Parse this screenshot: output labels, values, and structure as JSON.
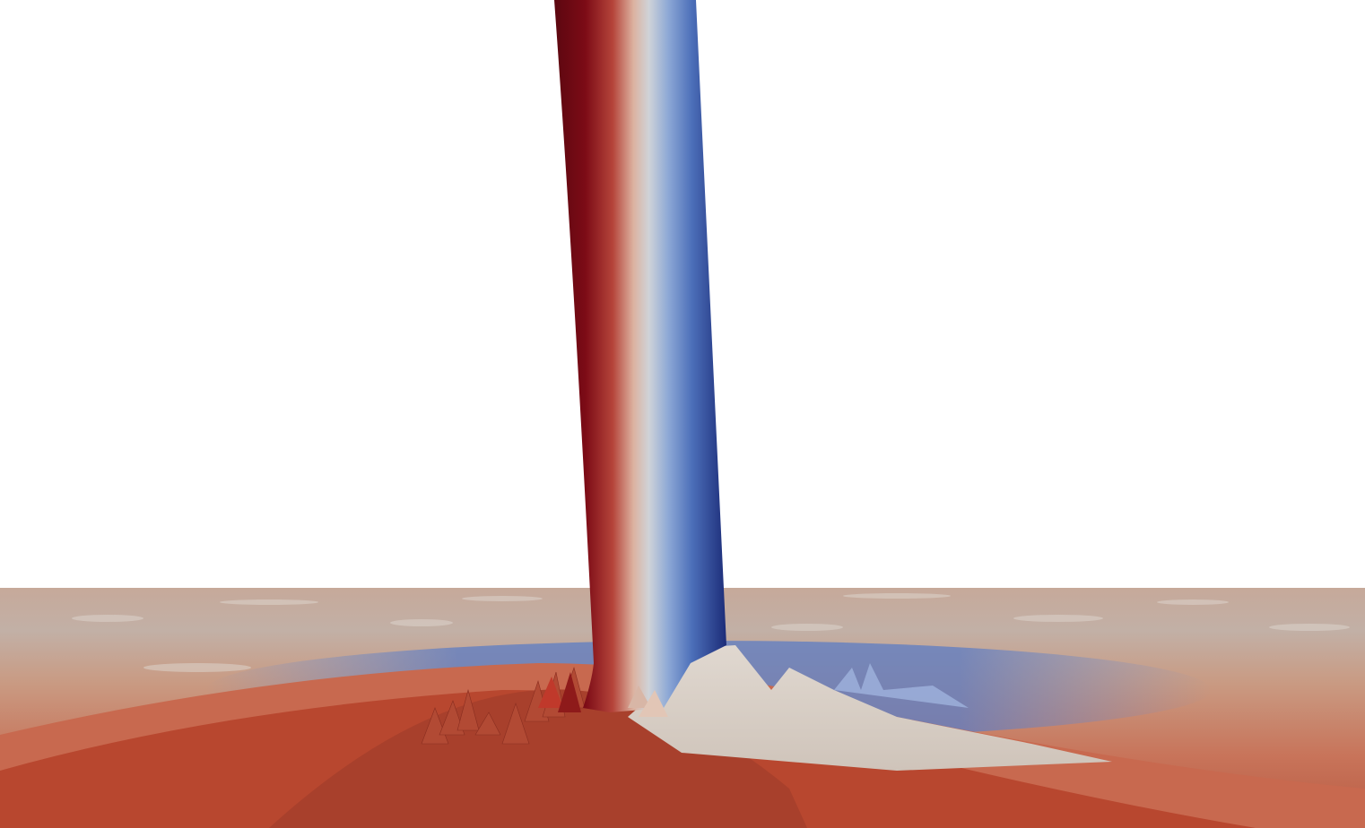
{
  "scene": {
    "background": "#ffffff",
    "colormap": {
      "deep_red": "#6e0a14",
      "red": "#b8382a",
      "salmon": "#e4a58a",
      "neutral": "#d9d2c8",
      "light_blue": "#8fa8d2",
      "blue": "#3a5aa8",
      "deep_blue": "#1e2f7a"
    },
    "ground_tint": "#b9a294"
  }
}
